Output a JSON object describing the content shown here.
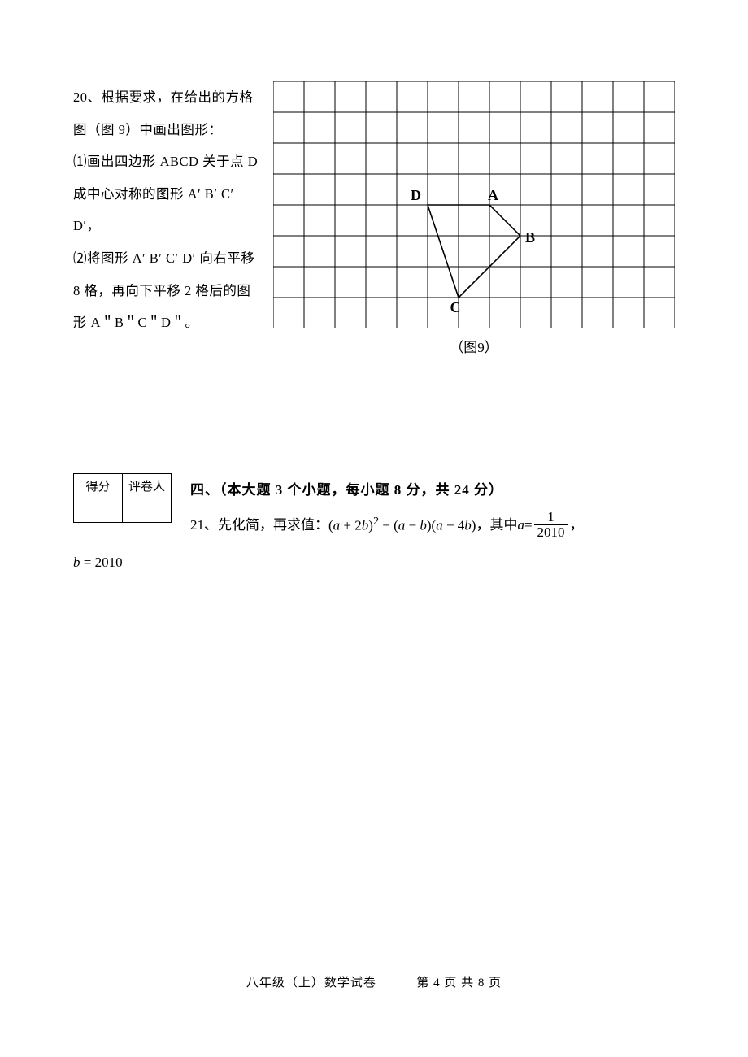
{
  "q20": {
    "number": "20、",
    "intro": "根据要求，在给出的方格图（图 9）中画出图形：",
    "part1": "⑴画出四边形 ABCD 关于点 D 成中心对称的图形 A′ B′ C′ D′，",
    "part2": "⑵将图形 A′ B′ C′ D′ 向右平移 8 格，再向下平移 2 格后的图形 A＂B＂C＂D＂。",
    "figure_caption": "（图9）"
  },
  "grid": {
    "cols": 13,
    "rows": 8,
    "cell_size": 38,
    "stroke_color": "#000000",
    "background": "#ffffff",
    "labels": {
      "A": {
        "gx": 7,
        "gy": 4
      },
      "B": {
        "gx": 8,
        "gy": 5
      },
      "C": {
        "gx": 6,
        "gy": 7
      },
      "D": {
        "gx": 5,
        "gy": 4
      }
    },
    "polygon": [
      {
        "gx": 7,
        "gy": 4
      },
      {
        "gx": 8,
        "gy": 5
      },
      {
        "gx": 6,
        "gy": 7
      },
      {
        "gx": 5,
        "gy": 4
      }
    ]
  },
  "score_table": {
    "headers": [
      "得分",
      "评卷人"
    ]
  },
  "section4": {
    "title": "四、（本大题 3 个小题，每小题 8 分，共 24 分）"
  },
  "q21": {
    "number": "21、",
    "prefix": "先化简，再求值：",
    "expr_open": "(",
    "var_a": "a",
    "plus_2b": " + 2",
    "var_b": "b",
    "expr_sq_close": ")",
    "sup2": "2",
    "minus": " − (",
    "minus_b": " − ",
    "paren_mid": ")(",
    "minus_4b": " − 4",
    "expr_end": ")",
    "post": "，其中 ",
    "eq": " = ",
    "frac_num": "1",
    "frac_den": "2010",
    "tail_comma": "，",
    "b_line_eq": " = 2010"
  },
  "footer": {
    "left": "八年级（上）数学试卷",
    "right": "第 4 页 共 8 页"
  }
}
